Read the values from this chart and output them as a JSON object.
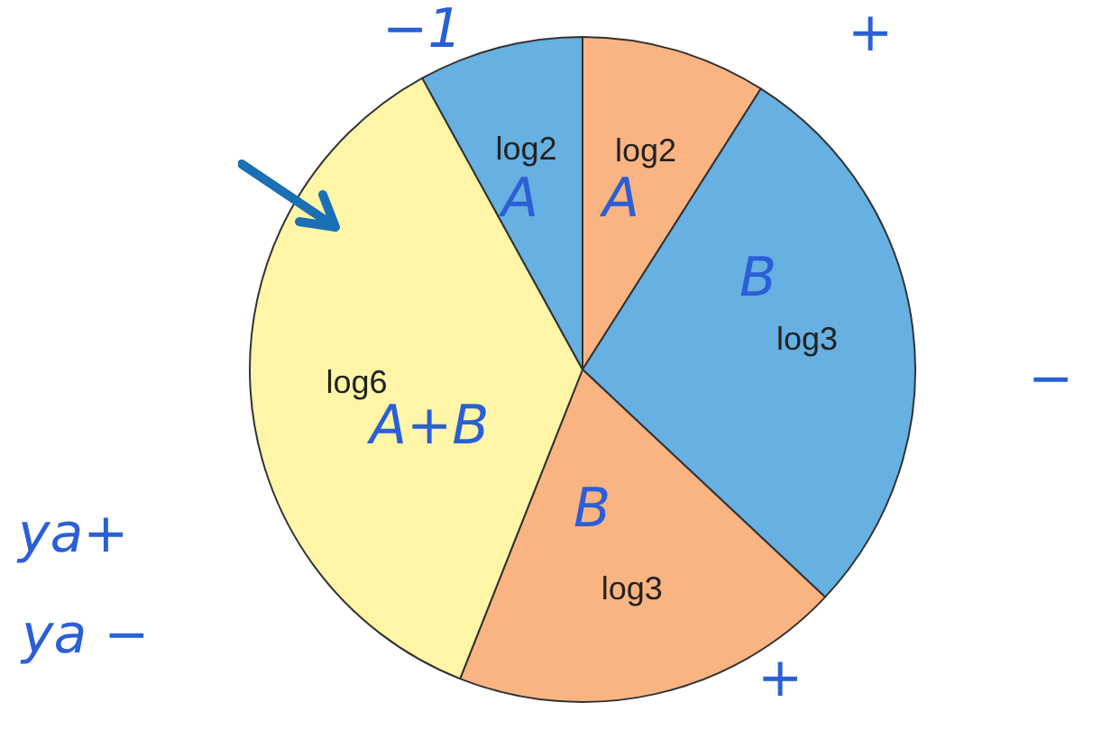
{
  "chart_data": {
    "type": "pie",
    "categories": [
      "log2",
      "log3",
      "log3",
      "log6",
      "log2"
    ],
    "values": [
      9,
      28,
      19,
      36,
      8
    ],
    "colors": [
      "#f9b482",
      "#66b0e2",
      "#f9b482",
      "#fef6a6",
      "#66b0e2"
    ],
    "annotations": [
      "−1",
      "+",
      "A",
      "A",
      "B",
      "B",
      "A+B",
      "−",
      "ya+",
      "ya −",
      "+"
    ]
  }
}
